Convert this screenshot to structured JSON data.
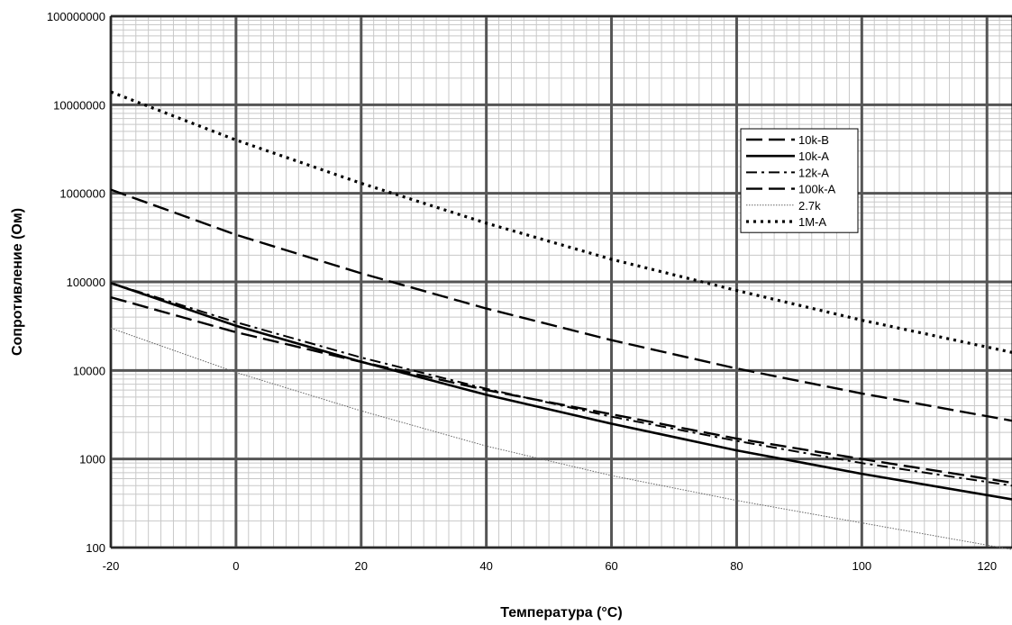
{
  "chart_data": {
    "type": "line",
    "title": "",
    "xlabel": "Температура (°C)",
    "ylabel": "Сопротивление (Ом)",
    "x_scale": "linear",
    "y_scale": "log",
    "xlim": [
      -20,
      124
    ],
    "ylim": [
      100,
      100000000
    ],
    "x_ticks": [
      -20,
      0,
      20,
      40,
      60,
      80,
      100,
      120
    ],
    "x_tick_labels": [
      "-20",
      "0",
      "20",
      "40",
      "60",
      "80",
      "100",
      "120"
    ],
    "y_ticks": [
      100,
      1000,
      10000,
      100000,
      1000000,
      10000000,
      100000000
    ],
    "y_tick_labels": [
      "100",
      "1000",
      "10000",
      "100000",
      "1000000",
      "10000000",
      "100000000"
    ],
    "grid": true,
    "legend": "top-right",
    "series": [
      {
        "name": "10k-B",
        "style": "long-dash",
        "x": [
          -20,
          0,
          20,
          40,
          60,
          80,
          100,
          124
        ],
        "y": [
          67000,
          27000,
          12500,
          6000,
          3200,
          1700,
          1000,
          540
        ]
      },
      {
        "name": "10k-A",
        "style": "solid",
        "x": [
          -20,
          0,
          20,
          40,
          60,
          80,
          100,
          124
        ],
        "y": [
          97000,
          32000,
          12500,
          5300,
          2500,
          1250,
          680,
          350
        ]
      },
      {
        "name": "12k-A",
        "style": "dash-dot",
        "x": [
          -20,
          0,
          20,
          40,
          60,
          80,
          100,
          124
        ],
        "y": [
          97000,
          35000,
          14000,
          6200,
          3000,
          1600,
          900,
          500
        ]
      },
      {
        "name": "100k-A",
        "style": "long-dash",
        "x": [
          -20,
          0,
          20,
          40,
          60,
          80,
          100,
          124
        ],
        "y": [
          1100000,
          340000,
          125000,
          50000,
          22000,
          10500,
          5500,
          2700
        ]
      },
      {
        "name": "2.7k",
        "style": "fine-dot",
        "x": [
          -20,
          0,
          20,
          40,
          60,
          80,
          100,
          124
        ],
        "y": [
          30000,
          9500,
          3500,
          1400,
          650,
          340,
          190,
          95
        ]
      },
      {
        "name": "1M-A",
        "style": "dotted",
        "x": [
          -20,
          0,
          20,
          40,
          60,
          80,
          100,
          124
        ],
        "y": [
          14000000,
          4000000,
          1300000,
          460000,
          180000,
          80000,
          37000,
          16000
        ]
      }
    ]
  }
}
